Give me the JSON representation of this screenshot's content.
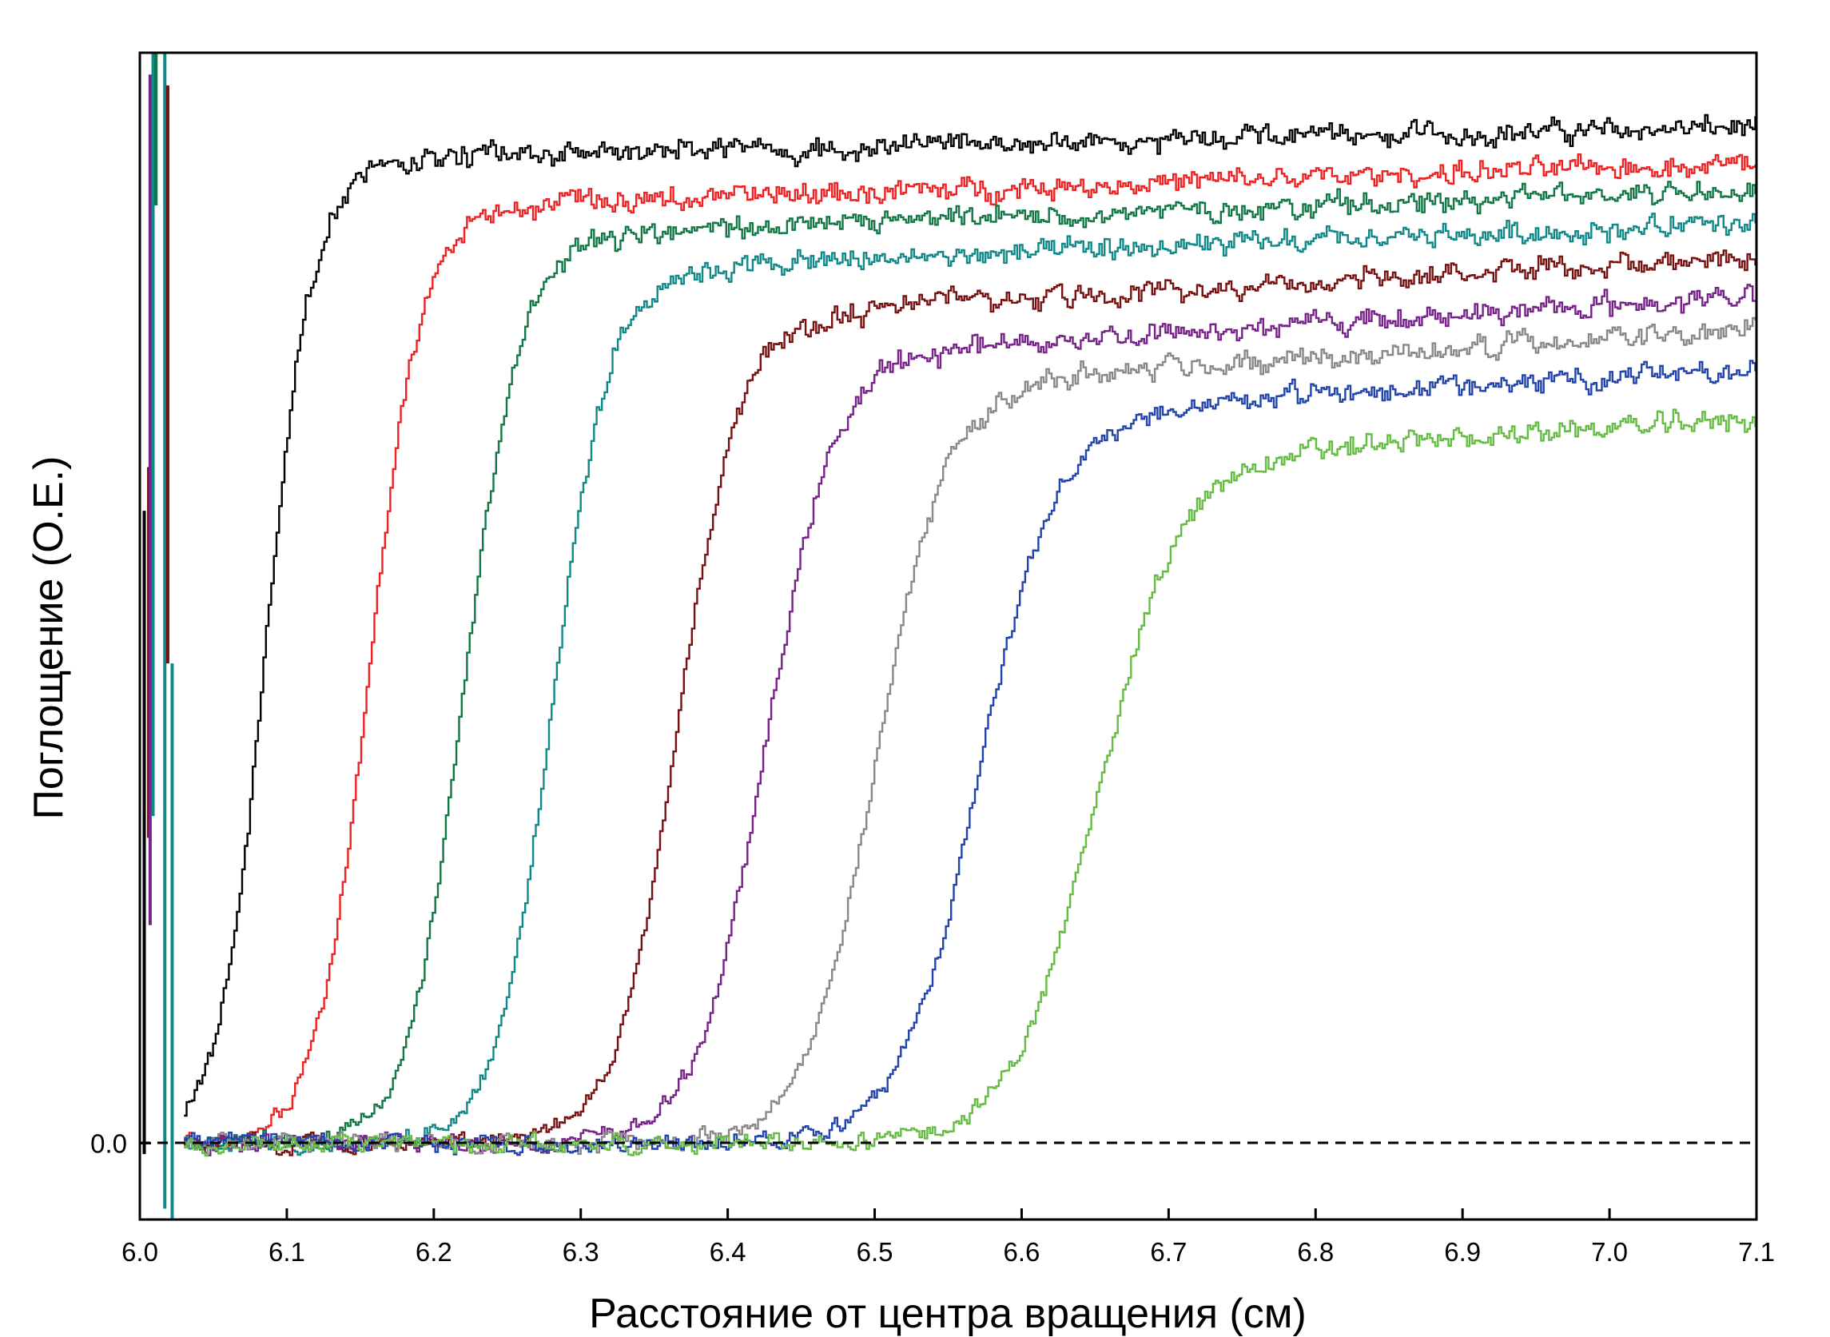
{
  "chart_data": {
    "type": "line",
    "title": "",
    "xlabel": "Расстояние от центра вращения (см)",
    "ylabel": "Поглощение (О.Е.)",
    "xlim": [
      6.0,
      7.1
    ],
    "ylim": [
      -0.07,
      1.0
    ],
    "x_ticks": [
      "6.0",
      "6.1",
      "6.2",
      "6.3",
      "6.4",
      "6.5",
      "6.6",
      "6.7",
      "6.8",
      "6.9",
      "7.0",
      "7.1"
    ],
    "y_ticks": [
      "0.0"
    ],
    "baseline": {
      "y": 0.0,
      "style": "dashed"
    },
    "grid": false,
    "legend": "none",
    "series": [
      {
        "color": "#000000",
        "midpoint": 6.085,
        "width": 0.016,
        "plateau": 0.905,
        "slope": 0.03,
        "seed": 1
      },
      {
        "color": "#ee2222",
        "midpoint": 6.155,
        "width": 0.018,
        "plateau": 0.862,
        "slope": 0.045,
        "seed": 2
      },
      {
        "color": "#117744",
        "midpoint": 6.22,
        "width": 0.019,
        "plateau": 0.835,
        "slope": 0.055,
        "seed": 3
      },
      {
        "color": "#118888",
        "midpoint": 6.28,
        "width": 0.019,
        "plateau": 0.805,
        "slope": 0.055,
        "seed": 4
      },
      {
        "color": "#771111",
        "midpoint": 6.365,
        "width": 0.021,
        "plateau": 0.765,
        "slope": 0.08,
        "seed": 5
      },
      {
        "color": "#772288",
        "midpoint": 6.425,
        "width": 0.023,
        "plateau": 0.73,
        "slope": 0.085,
        "seed": 6
      },
      {
        "color": "#888888",
        "midpoint": 6.5,
        "width": 0.024,
        "plateau": 0.705,
        "slope": 0.085,
        "seed": 7
      },
      {
        "color": "#2244aa",
        "midpoint": 6.57,
        "width": 0.026,
        "plateau": 0.675,
        "slope": 0.09,
        "seed": 8
      },
      {
        "color": "#66bb44",
        "midpoint": 6.65,
        "width": 0.028,
        "plateau": 0.635,
        "slope": 0.09,
        "seed": 9
      }
    ]
  }
}
